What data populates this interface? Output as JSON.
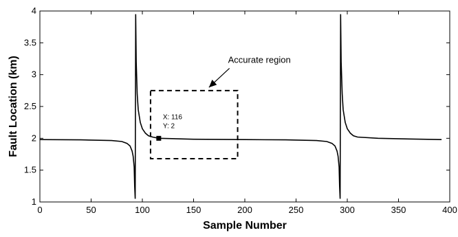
{
  "chart_data": {
    "type": "line",
    "title": "",
    "xlabel": "Sample Number",
    "ylabel": "Fault Location (km)",
    "xlim": [
      0,
      400
    ],
    "ylim": [
      1,
      4
    ],
    "xticks": [
      0,
      50,
      100,
      150,
      200,
      250,
      300,
      350,
      400
    ],
    "yticks": [
      1,
      1.5,
      2,
      2.5,
      3,
      3.5,
      4
    ],
    "ytick_labels": [
      "1",
      "1.5",
      "2",
      "2.5",
      "3",
      "3.5",
      "4"
    ],
    "grid": false,
    "legend": "none",
    "series": [
      {
        "color": "#000000",
        "x": [
          0,
          40,
          70,
          80,
          85,
          88,
          90,
          91,
          92,
          92.5,
          93,
          93.5,
          94,
          95,
          96,
          98,
          100,
          103,
          106,
          110,
          116,
          150,
          200,
          240,
          270,
          280,
          285,
          288,
          290,
          291,
          292,
          292.5,
          293,
          293.5,
          294,
          295,
          296,
          298,
          300,
          303,
          306,
          310,
          330,
          360,
          392
        ],
        "y": [
          1.98,
          1.975,
          1.965,
          1.95,
          1.92,
          1.88,
          1.8,
          1.72,
          1.55,
          1.25,
          1.05,
          3.95,
          3.2,
          2.7,
          2.45,
          2.25,
          2.15,
          2.08,
          2.04,
          2.02,
          2.0,
          1.985,
          1.98,
          1.975,
          1.965,
          1.95,
          1.92,
          1.88,
          1.8,
          1.72,
          1.55,
          1.25,
          1.05,
          3.95,
          3.2,
          2.7,
          2.45,
          2.25,
          2.15,
          2.08,
          2.04,
          2.02,
          2.0,
          1.99,
          1.98
        ]
      }
    ],
    "annotations": {
      "region_label": "Accurate region",
      "region_box": {
        "x0": 108,
        "x1": 193,
        "y0": 1.68,
        "y1": 2.75
      },
      "arrow_from": {
        "x": 185,
        "y": 3.1
      },
      "arrow_to": {
        "x": 165,
        "y": 2.8
      },
      "datatip": {
        "x": 116,
        "y": 2,
        "label_x": "X: 116",
        "label_y": "Y: 2"
      }
    }
  }
}
